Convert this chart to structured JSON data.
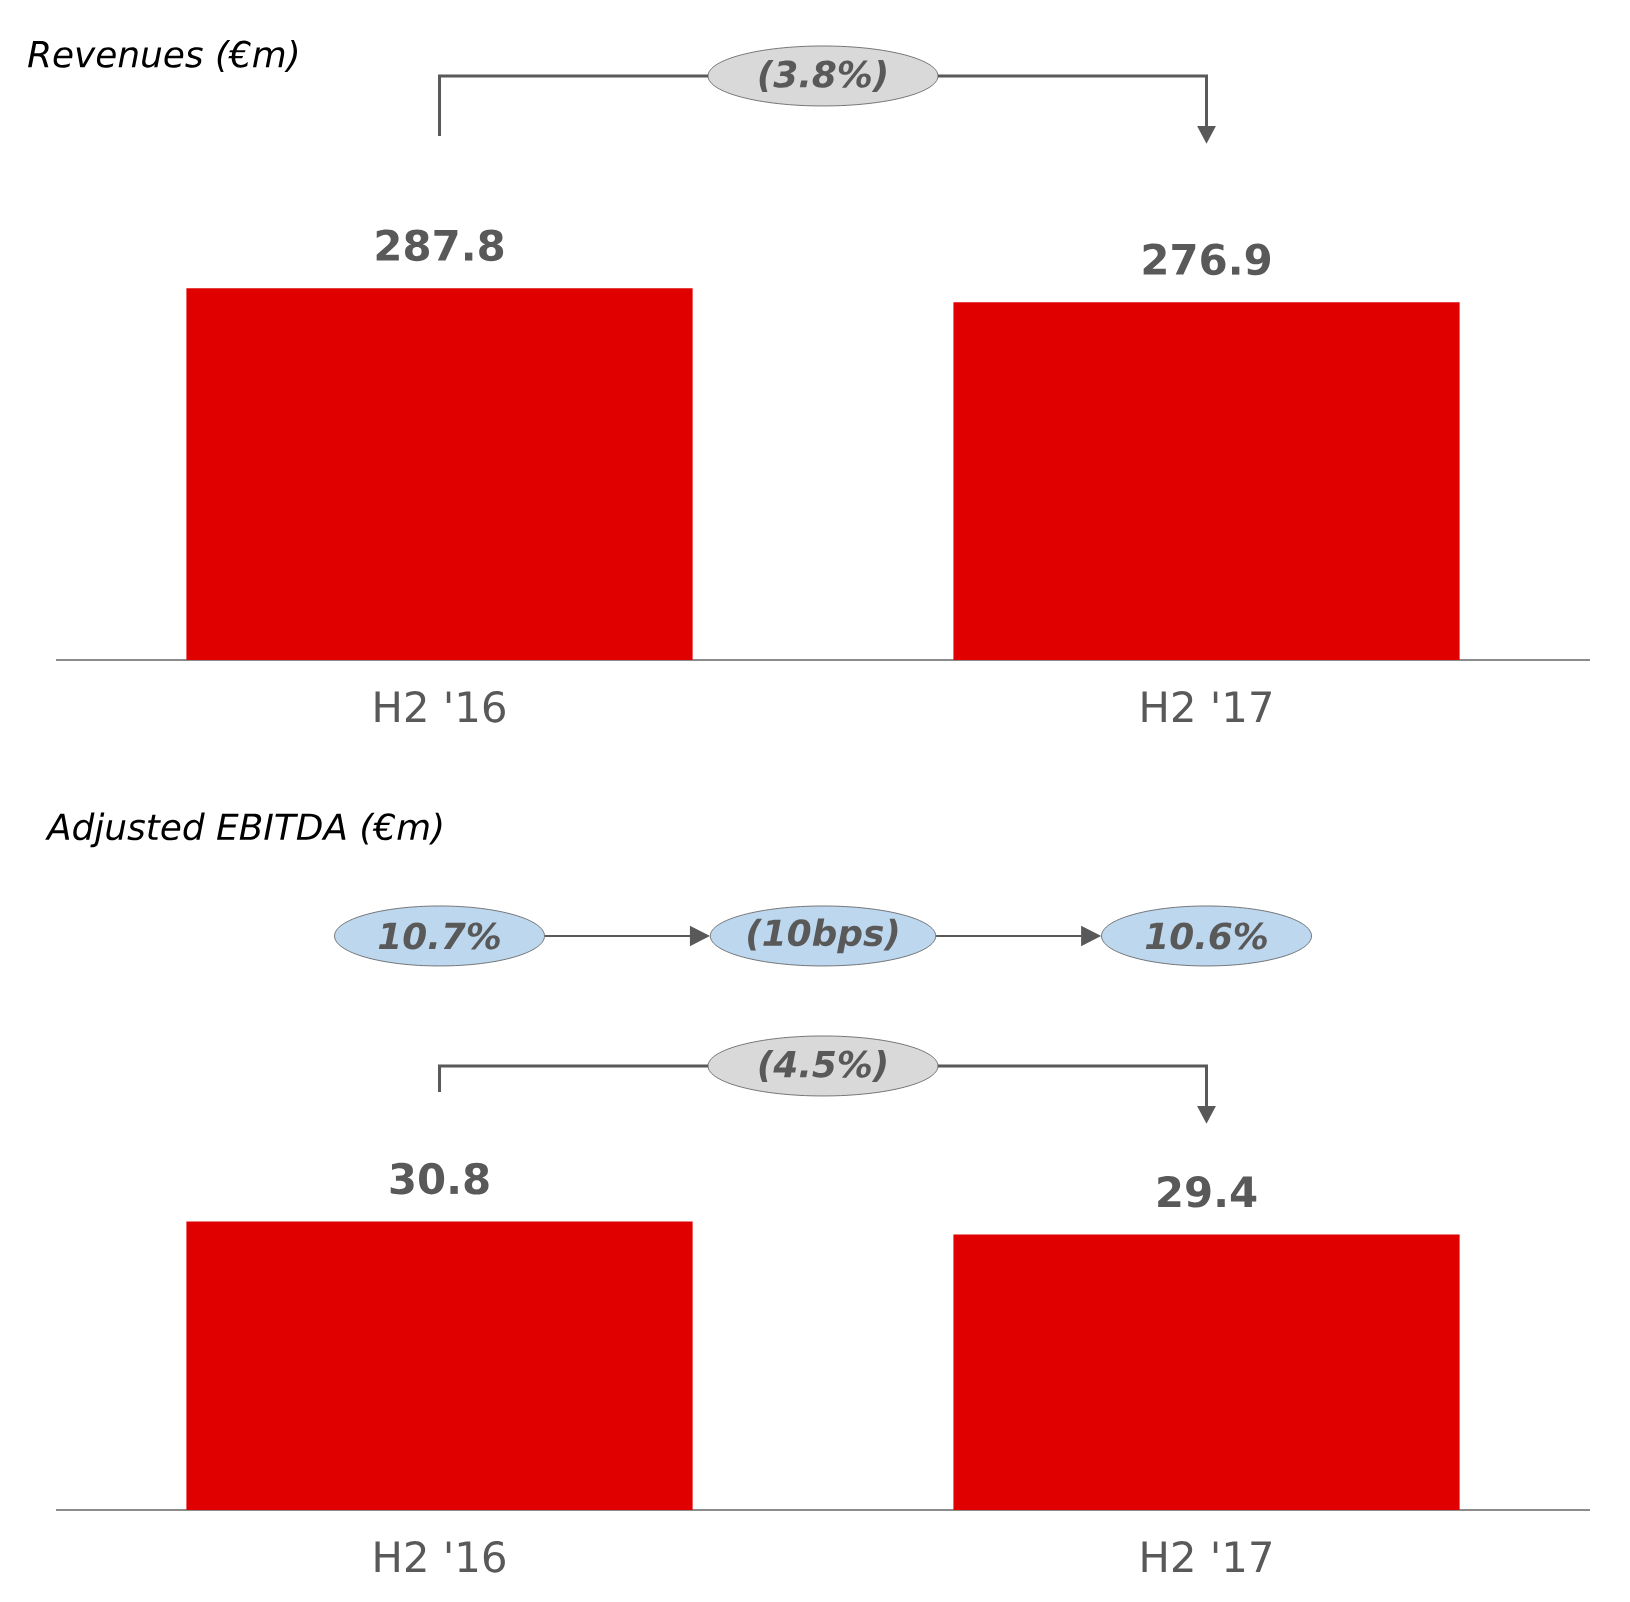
{
  "chart_data": [
    {
      "type": "bar",
      "title": "Revenues (€m)",
      "categories": [
        "H2 '16",
        "H2 '17"
      ],
      "values": [
        287.8,
        276.9
      ],
      "color": "#e00000",
      "data_labels": true,
      "annotations": [
        "(3.8%)"
      ]
    },
    {
      "type": "bar",
      "title": "Adjusted EBITDA (€m)",
      "categories": [
        "H2 '16",
        "H2 '17"
      ],
      "values": [
        30.8,
        29.4
      ],
      "color": "#e00000",
      "data_labels": true,
      "annotations": [
        "10.7%",
        "(10bps)",
        "10.6%",
        "(4.5%)"
      ]
    }
  ]
}
